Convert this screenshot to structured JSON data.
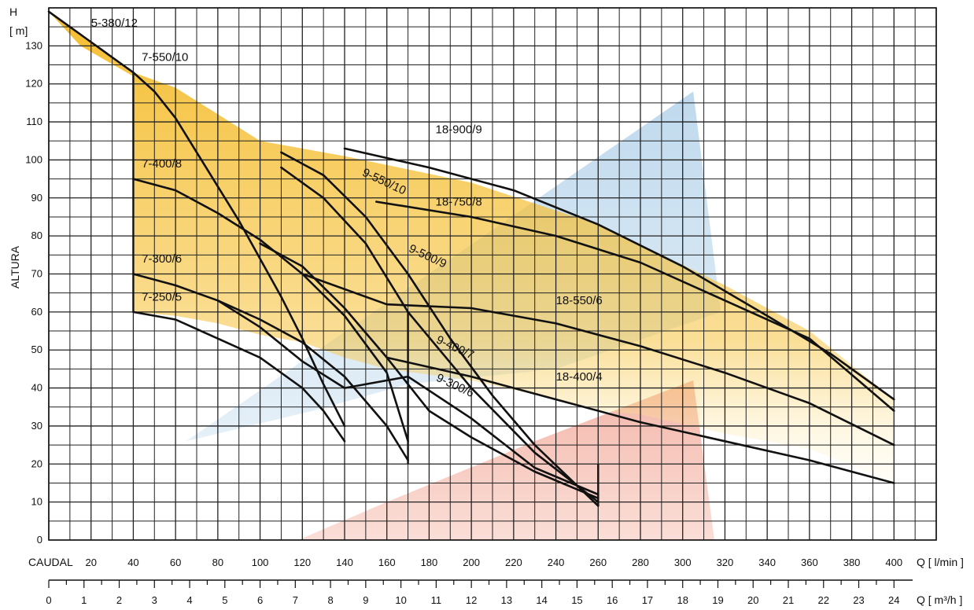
{
  "chart_data": {
    "type": "line",
    "y_axis": {
      "label_top": "H",
      "unit": "[ m]",
      "title": "ALTURA",
      "range": [
        0,
        140
      ],
      "ticks": [
        0,
        10,
        20,
        30,
        40,
        50,
        60,
        70,
        80,
        90,
        100,
        110,
        120,
        130
      ]
    },
    "x_axis_primary": {
      "prefix": "CAUDAL",
      "unit_label": "Q [ l/min ]",
      "range": [
        0,
        420
      ],
      "ticks": [
        20,
        40,
        60,
        80,
        100,
        120,
        140,
        160,
        180,
        200,
        220,
        240,
        260,
        280,
        300,
        320,
        340,
        360,
        380,
        400
      ]
    },
    "x_axis_secondary": {
      "unit_label": "Q [ m³/h ]",
      "range": [
        0,
        25.2
      ],
      "ticks": [
        0,
        1,
        2,
        3,
        4,
        5,
        6,
        7,
        8,
        9,
        10,
        11,
        12,
        13,
        14,
        15,
        16,
        17,
        18,
        19,
        20,
        21,
        22,
        23,
        24
      ]
    },
    "grid": true,
    "regions": [
      {
        "name": "blue",
        "color": "#aecfe8",
        "points": [
          [
            65,
            26
          ],
          [
            305,
            118
          ],
          [
            318,
            60
          ],
          [
            240,
            45
          ],
          [
            170,
            41
          ],
          [
            125,
            34
          ]
        ]
      },
      {
        "name": "red",
        "color": "#f2b3a6",
        "points": [
          [
            118,
            0
          ],
          [
            160,
            10
          ],
          [
            230,
            26
          ],
          [
            305,
            42
          ],
          [
            315,
            0
          ]
        ]
      },
      {
        "name": "yellow",
        "color": "#f4b81e",
        "points": [
          [
            0,
            139
          ],
          [
            20,
            131
          ],
          [
            40,
            123
          ],
          [
            60,
            119
          ],
          [
            80,
            112
          ],
          [
            100,
            105
          ],
          [
            140,
            101
          ],
          [
            200,
            94
          ],
          [
            260,
            83
          ],
          [
            320,
            67
          ],
          [
            360,
            55
          ],
          [
            400,
            37
          ],
          [
            400,
            15
          ],
          [
            360,
            24
          ],
          [
            320,
            28
          ],
          [
            280,
            33
          ],
          [
            260,
            34
          ],
          [
            240,
            37
          ],
          [
            200,
            42
          ],
          [
            160,
            45
          ],
          [
            140,
            48
          ],
          [
            120,
            52
          ],
          [
            100,
            54
          ],
          [
            80,
            57
          ],
          [
            60,
            59
          ],
          [
            40,
            60
          ],
          [
            40,
            122
          ],
          [
            15,
            130
          ],
          [
            0,
            139
          ]
        ]
      }
    ],
    "series": [
      {
        "name": "5-380/12",
        "label": "5-380/12",
        "label_pos": [
          20,
          135
        ],
        "points": [
          [
            0,
            139
          ],
          [
            10,
            135
          ],
          [
            20,
            131
          ],
          [
            30,
            127
          ],
          [
            40,
            123
          ]
        ]
      },
      {
        "name": "7-550/10",
        "label": "7-550/10",
        "label_pos": [
          44,
          126
        ],
        "points": [
          [
            40,
            123
          ],
          [
            50,
            118
          ],
          [
            60,
            111
          ],
          [
            70,
            102
          ],
          [
            80,
            93
          ],
          [
            90,
            84
          ],
          [
            100,
            74
          ],
          [
            110,
            64
          ],
          [
            120,
            53
          ],
          [
            130,
            41
          ],
          [
            140,
            30
          ]
        ]
      },
      {
        "name": "7-400/8",
        "label": "7-400/8",
        "label_pos": [
          44,
          98
        ],
        "points": [
          [
            40,
            95
          ],
          [
            60,
            92
          ],
          [
            80,
            86
          ],
          [
            100,
            79
          ],
          [
            120,
            70
          ],
          [
            140,
            59
          ],
          [
            160,
            44
          ],
          [
            170,
            26
          ]
        ]
      },
      {
        "name": "7-300/6",
        "label": "7-300/6",
        "label_pos": [
          44,
          73
        ],
        "points": [
          [
            40,
            70
          ],
          [
            60,
            67
          ],
          [
            80,
            63
          ],
          [
            100,
            58
          ],
          [
            120,
            52
          ],
          [
            140,
            43
          ],
          [
            160,
            30
          ],
          [
            170,
            21
          ]
        ]
      },
      {
        "name": "7-250/5",
        "label": "7-250/5",
        "label_pos": [
          44,
          63
        ],
        "points": [
          [
            40,
            60
          ],
          [
            60,
            58
          ],
          [
            80,
            53
          ],
          [
            100,
            48
          ],
          [
            120,
            40
          ],
          [
            130,
            34
          ],
          [
            140,
            26
          ]
        ]
      },
      {
        "name": "9-550/10",
        "label": "9-550/10",
        "label_pos": [
          148,
          96
        ],
        "points": [
          [
            110,
            102
          ],
          [
            130,
            96
          ],
          [
            150,
            85
          ],
          [
            170,
            70
          ],
          [
            190,
            53
          ],
          [
            210,
            38
          ],
          [
            230,
            25
          ],
          [
            260,
            9
          ]
        ]
      },
      {
        "name": "9-500/9",
        "label": "9-500/9",
        "label_pos": [
          170,
          76
        ],
        "points": [
          [
            110,
            98
          ],
          [
            130,
            90
          ],
          [
            150,
            78
          ],
          [
            170,
            60
          ],
          [
            200,
            40
          ],
          [
            230,
            23
          ],
          [
            260,
            10
          ]
        ]
      },
      {
        "name": "9-400/7",
        "label": "9-400/7",
        "label_pos": [
          183,
          52
        ],
        "points": [
          [
            100,
            78
          ],
          [
            120,
            72
          ],
          [
            140,
            61
          ],
          [
            160,
            48
          ],
          [
            180,
            34
          ],
          [
            200,
            27
          ],
          [
            230,
            18
          ],
          [
            260,
            11
          ]
        ]
      },
      {
        "name": "9-300/6",
        "label": "9-300/6",
        "label_pos": [
          183,
          42
        ],
        "points": [
          [
            80,
            63
          ],
          [
            100,
            56
          ],
          [
            120,
            47
          ],
          [
            140,
            40
          ],
          [
            170,
            43
          ],
          [
            200,
            32
          ],
          [
            230,
            19
          ],
          [
            260,
            12
          ]
        ]
      },
      {
        "name": "18-900/9",
        "label": "18-900/9",
        "label_pos": [
          183,
          107
        ],
        "points": [
          [
            140,
            103
          ],
          [
            180,
            98
          ],
          [
            220,
            92
          ],
          [
            260,
            83
          ],
          [
            300,
            72
          ],
          [
            340,
            59
          ],
          [
            370,
            49
          ],
          [
            400,
            37
          ]
        ]
      },
      {
        "name": "18-750/8",
        "label": "18-750/8",
        "label_pos": [
          183,
          88
        ],
        "points": [
          [
            155,
            89
          ],
          [
            200,
            85
          ],
          [
            240,
            80
          ],
          [
            280,
            73
          ],
          [
            320,
            63
          ],
          [
            360,
            53
          ],
          [
            400,
            34
          ]
        ]
      },
      {
        "name": "18-550/6",
        "label": "18-550/6",
        "label_pos": [
          240,
          62
        ],
        "points": [
          [
            120,
            70
          ],
          [
            160,
            62
          ],
          [
            200,
            61
          ],
          [
            240,
            57
          ],
          [
            280,
            51
          ],
          [
            320,
            44
          ],
          [
            360,
            36
          ],
          [
            400,
            25
          ]
        ]
      },
      {
        "name": "18-400/4",
        "label": "18-400/4",
        "label_pos": [
          240,
          42
        ],
        "points": [
          [
            160,
            48
          ],
          [
            200,
            43
          ],
          [
            240,
            37
          ],
          [
            280,
            31
          ],
          [
            320,
            26
          ],
          [
            360,
            21
          ],
          [
            400,
            15
          ]
        ]
      }
    ]
  }
}
